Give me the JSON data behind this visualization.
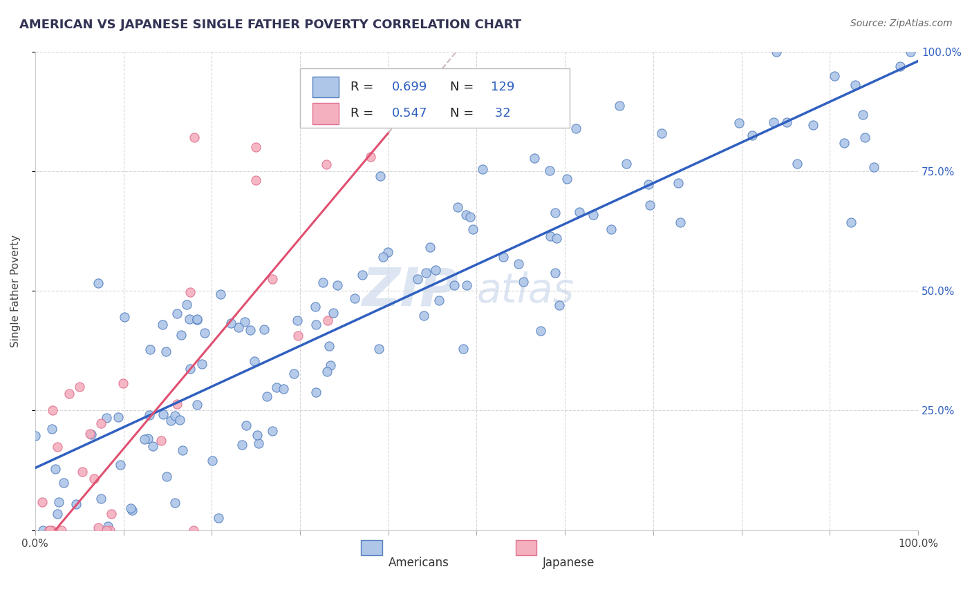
{
  "title": "AMERICAN VS JAPANESE SINGLE FATHER POVERTY CORRELATION CHART",
  "source_text": "Source: ZipAtlas.com",
  "ylabel": "Single Father Poverty",
  "xlim": [
    0.0,
    1.0
  ],
  "ylim": [
    0.0,
    1.0
  ],
  "r_american": 0.699,
  "n_american": 129,
  "r_japanese": 0.547,
  "n_japanese": 32,
  "american_dot_fill": "#aec6e8",
  "american_dot_edge": "#5580c0",
  "japanese_dot_fill": "#f4b0be",
  "japanese_dot_edge": "#e07090",
  "american_line_color": "#3060c0",
  "japanese_line_color": "#e05070",
  "japanese_dashed_color": "#ccbbbb",
  "watermark_color": "#c5d5e8",
  "title_color": "#333355",
  "legend_value_color": "#3060c0",
  "legend_label_color": "#222222",
  "background_color": "#ffffff",
  "grid_color": "#cccccc",
  "right_tick_color": "#3060c0",
  "source_color": "#666666"
}
